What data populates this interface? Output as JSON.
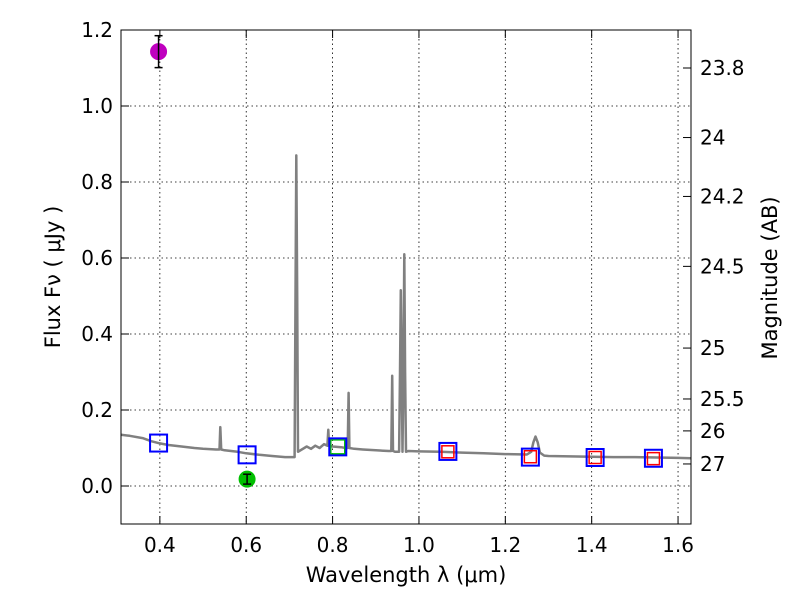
{
  "chart_data": {
    "type": "line",
    "title": "",
    "xlabel": "Wavelength  λ (μm)",
    "ylabel": "Flux  Fν  ( μJy )",
    "y2label": "Magnitude (AB)",
    "xlim": [
      0.31,
      1.63
    ],
    "ylim": [
      -0.1,
      1.2
    ],
    "grid": true,
    "x_ticks": [
      0.4,
      0.6,
      0.8,
      1.0,
      1.2,
      1.4,
      1.6
    ],
    "x_tick_labels": [
      "0.4",
      "0.6",
      "0.8",
      "1.0",
      "1.2",
      "1.4",
      "1.6"
    ],
    "y_ticks": [
      0.0,
      0.2,
      0.4,
      0.6,
      0.8,
      1.0,
      1.2
    ],
    "y_tick_labels": [
      "0.0",
      "0.2",
      "0.4",
      "0.6",
      "0.8",
      "1.0",
      "1.2"
    ],
    "mag_ticks": [
      {
        "label": "23.8",
        "flux": 1.1
      },
      {
        "label": "24",
        "flux": 0.917
      },
      {
        "label": "24.2",
        "flux": 0.762
      },
      {
        "label": "24.5",
        "flux": 0.578
      },
      {
        "label": "25",
        "flux": 0.363
      },
      {
        "label": "25.5",
        "flux": 0.229
      },
      {
        "label": "26",
        "flux": 0.145
      },
      {
        "label": "27",
        "flux": 0.058
      }
    ],
    "series": [
      {
        "name": "model spectrum",
        "color": "#808080",
        "x": [
          0.31,
          0.33,
          0.36,
          0.38,
          0.4,
          0.42,
          0.45,
          0.48,
          0.5,
          0.53,
          0.538,
          0.54,
          0.542,
          0.55,
          0.58,
          0.6,
          0.63,
          0.66,
          0.69,
          0.712,
          0.714,
          0.716,
          0.718,
          0.72,
          0.74,
          0.75,
          0.76,
          0.77,
          0.78,
          0.788,
          0.79,
          0.792,
          0.8,
          0.82,
          0.83,
          0.835,
          0.837,
          0.839,
          0.85,
          0.87,
          0.9,
          0.93,
          0.936,
          0.938,
          0.94,
          0.945,
          0.954,
          0.956,
          0.958,
          0.96,
          0.962,
          0.964,
          0.966,
          0.968,
          0.97,
          0.975,
          1.0,
          1.05,
          1.1,
          1.15,
          1.2,
          1.25,
          1.26,
          1.265,
          1.27,
          1.275,
          1.28,
          1.29,
          1.3,
          1.35,
          1.4,
          1.45,
          1.5,
          1.55,
          1.6,
          1.63
        ],
        "values": [
          0.135,
          0.132,
          0.126,
          0.118,
          0.112,
          0.108,
          0.104,
          0.1,
          0.098,
          0.096,
          0.096,
          0.155,
          0.096,
          0.094,
          0.09,
          0.086,
          0.082,
          0.079,
          0.076,
          0.076,
          0.5,
          0.87,
          0.5,
          0.09,
          0.104,
          0.098,
          0.106,
          0.1,
          0.11,
          0.106,
          0.148,
          0.106,
          0.104,
          0.102,
          0.1,
          0.1,
          0.245,
          0.1,
          0.098,
          0.096,
          0.094,
          0.092,
          0.092,
          0.29,
          0.092,
          0.09,
          0.09,
          0.3,
          0.515,
          0.3,
          0.09,
          0.3,
          0.61,
          0.3,
          0.09,
          0.092,
          0.091,
          0.09,
          0.088,
          0.086,
          0.084,
          0.083,
          0.09,
          0.115,
          0.13,
          0.115,
          0.088,
          0.08,
          0.079,
          0.078,
          0.077,
          0.076,
          0.076,
          0.075,
          0.074,
          0.073
        ]
      }
    ],
    "observed": [
      {
        "name": "magenta point",
        "color": "#bf00bf",
        "x": 0.397,
        "y": 1.143,
        "err": 0.042
      },
      {
        "name": "green point",
        "color": "#00bf00",
        "x": 0.602,
        "y": 0.018,
        "err": 0.013
      }
    ],
    "model_photometry_blue": [
      {
        "x": 0.397,
        "y": 0.113
      },
      {
        "x": 0.602,
        "y": 0.082
      },
      {
        "x": 0.812,
        "y": 0.103
      },
      {
        "x": 1.067,
        "y": 0.091
      },
      {
        "x": 1.258,
        "y": 0.076
      },
      {
        "x": 1.408,
        "y": 0.075
      },
      {
        "x": 1.543,
        "y": 0.073
      }
    ],
    "model_photometry_green": [
      {
        "x": 0.812,
        "y": 0.103
      }
    ],
    "model_photometry_red": [
      {
        "x": 1.067,
        "y": 0.09
      },
      {
        "x": 1.258,
        "y": 0.077
      },
      {
        "x": 1.408,
        "y": 0.075
      },
      {
        "x": 1.543,
        "y": 0.072
      }
    ]
  }
}
